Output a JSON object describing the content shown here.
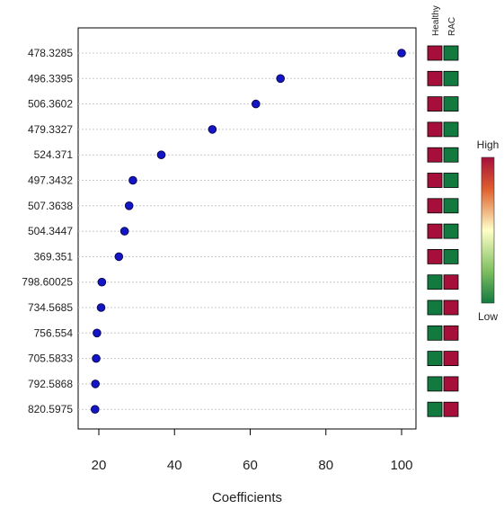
{
  "chart_data": {
    "type": "scatter",
    "xlabel": "Coefficients",
    "xlim": [
      15,
      103
    ],
    "xticks": [
      20,
      40,
      60,
      80,
      100
    ],
    "grid": "horizontal dotted",
    "features": [
      {
        "name": "478.3285",
        "value": 100
      },
      {
        "name": "496.3395",
        "value": 68
      },
      {
        "name": "506.3602",
        "value": 61.5
      },
      {
        "name": "479.3327",
        "value": 50
      },
      {
        "name": "524.371",
        "value": 36.5
      },
      {
        "name": "497.3432",
        "value": 29
      },
      {
        "name": "507.3638",
        "value": 28
      },
      {
        "name": "504.3447",
        "value": 26.8
      },
      {
        "name": "369.351",
        "value": 25.3
      },
      {
        "name": "798.60025",
        "value": 20.8
      },
      {
        "name": "734.5685",
        "value": 20.6
      },
      {
        "name": "756.554",
        "value": 19.5
      },
      {
        "name": "705.5833",
        "value": 19.3
      },
      {
        "name": "792.5868",
        "value": 19.1
      },
      {
        "name": "820.5975",
        "value": 19
      }
    ],
    "groups": [
      "Healthy",
      "RAC"
    ],
    "heatmap": [
      [
        "high",
        "low"
      ],
      [
        "high",
        "low"
      ],
      [
        "high",
        "low"
      ],
      [
        "high",
        "low"
      ],
      [
        "high",
        "low"
      ],
      [
        "high",
        "low"
      ],
      [
        "high",
        "low"
      ],
      [
        "high",
        "low"
      ],
      [
        "high",
        "low"
      ],
      [
        "low",
        "high"
      ],
      [
        "low",
        "high"
      ],
      [
        "low",
        "high"
      ],
      [
        "low",
        "high"
      ],
      [
        "low",
        "high"
      ],
      [
        "low",
        "high"
      ]
    ],
    "legend": {
      "high_label": "High",
      "low_label": "Low",
      "placement": "right"
    },
    "colors": {
      "high": "#a50f3a",
      "low": "#137a3f",
      "point": "#1515c8",
      "point_stroke": "#0a0a55"
    }
  }
}
